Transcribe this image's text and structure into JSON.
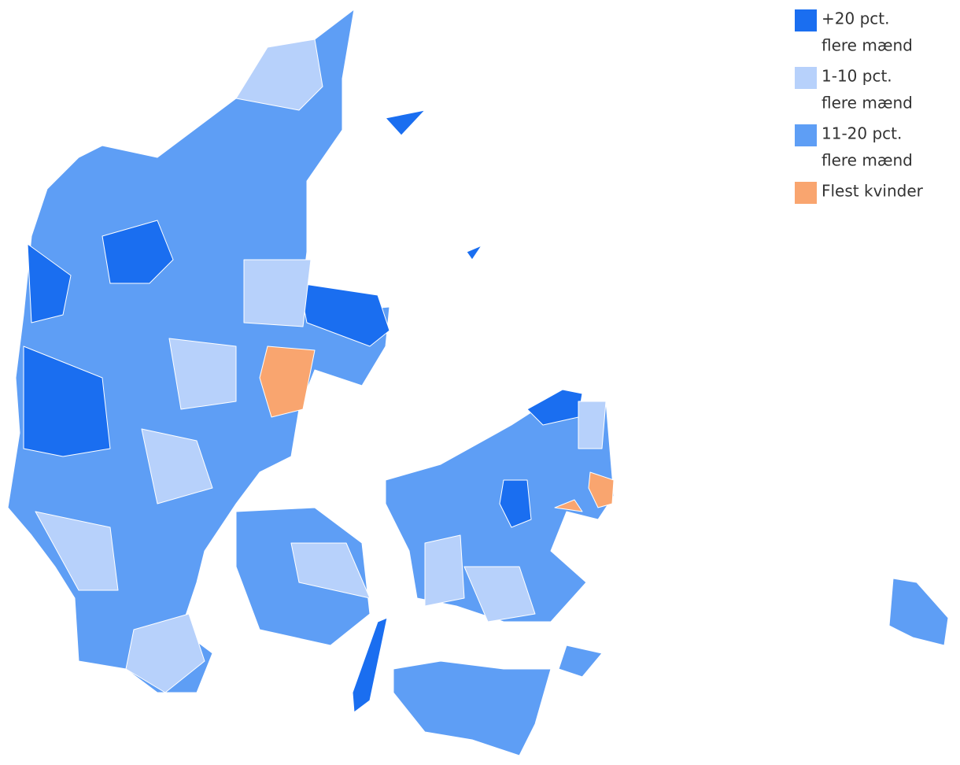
{
  "legend": {
    "items": [
      {
        "lines": [
          "+20 pct.",
          "flere mænd"
        ],
        "color": "#1a6ef0"
      },
      {
        "lines": [
          "1-10 pct.",
          "flere mænd"
        ],
        "color": "#b7d1fb"
      },
      {
        "lines": [
          "11-20 pct.",
          "flere mænd"
        ],
        "color": "#5e9ef5"
      },
      {
        "lines": [
          "Flest kvinder"
        ],
        "color": "#f9a56f"
      }
    ]
  }
}
